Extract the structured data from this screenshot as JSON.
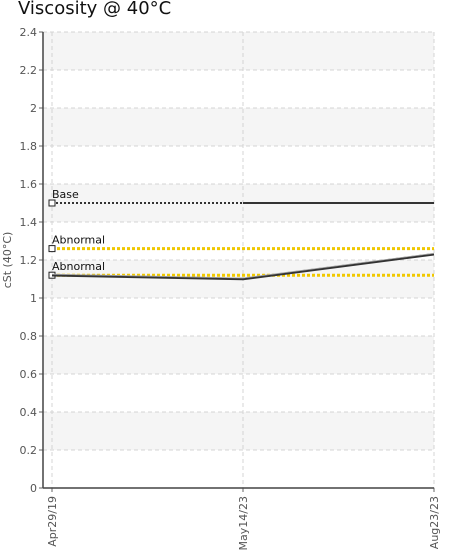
{
  "chart_data": {
    "type": "line",
    "title": "Viscosity @ 40°C",
    "ylabel": "cSt (40°C)",
    "xlabel": "",
    "ylim": [
      0,
      2.4
    ],
    "yticks": [
      "0",
      "0.2",
      "0.4",
      "0.6",
      "0.8",
      "1",
      "1.2",
      "1.4",
      "1.6",
      "1.8",
      "2",
      "2.2",
      "2.4"
    ],
    "categories": [
      "Apr29/19",
      "May14/23",
      "Aug23/23"
    ],
    "series": [
      {
        "values": [
          1.12,
          1.1,
          1.23
        ],
        "color": "#333333"
      }
    ],
    "reference_lines": [
      {
        "label": "Base",
        "value": 1.5,
        "color": "#333333",
        "style": "dotted-then-solid"
      },
      {
        "label": "Abnormal",
        "value": 1.26,
        "color": "#f0c800",
        "style": "dotted"
      },
      {
        "label": "Abnormal",
        "value": 1.12,
        "color": "#f0c800",
        "style": "dotted"
      }
    ],
    "grid": true,
    "band_colors": [
      "#f5f5f5",
      "#ffffff"
    ]
  }
}
